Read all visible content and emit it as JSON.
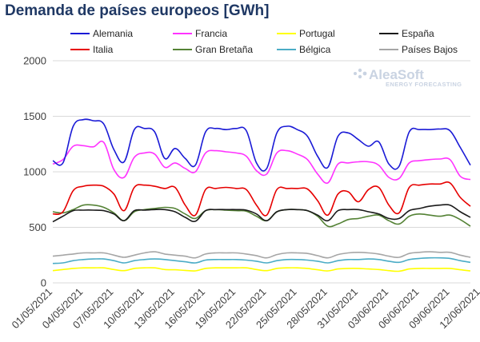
{
  "chart_data": {
    "type": "line",
    "title": "Demanda de países europeos [GWh]",
    "xlabel": "",
    "ylabel": "",
    "ylim": [
      0,
      2000
    ],
    "yticks": [
      0,
      500,
      1000,
      1500,
      2000
    ],
    "grid": true,
    "legend_position": "top",
    "x_start": "01/05/2021",
    "x_end": "13/06/2021",
    "xtick_labels": [
      "01/05/2021",
      "04/05/2021",
      "07/05/2021",
      "10/05/2021",
      "13/05/2021",
      "16/05/2021",
      "19/05/2021",
      "22/05/2021",
      "25/05/2021",
      "28/05/2021",
      "31/05/2021",
      "03/06/2021",
      "06/06/2021",
      "09/06/2021",
      "12/06/2021"
    ],
    "series": [
      {
        "name": "Alemania",
        "color": "#1a1ad6",
        "values": [
          1100,
          1080,
          1410,
          1470,
          1460,
          1430,
          1200,
          1090,
          1380,
          1390,
          1360,
          1120,
          1210,
          1120,
          1060,
          1360,
          1390,
          1380,
          1390,
          1370,
          1080,
          1030,
          1350,
          1410,
          1380,
          1320,
          1140,
          1040,
          1320,
          1350,
          1290,
          1230,
          1270,
          1070,
          1050,
          1360,
          1380,
          1380,
          1385,
          1370,
          1220,
          1060
        ]
      },
      {
        "name": "Francia",
        "color": "#ff33ff",
        "values": [
          1070,
          1110,
          1230,
          1235,
          1225,
          1265,
          1020,
          950,
          1130,
          1170,
          1160,
          1040,
          1080,
          1030,
          1000,
          1170,
          1190,
          1180,
          1170,
          1140,
          1010,
          980,
          1170,
          1190,
          1160,
          1110,
          980,
          900,
          1070,
          1080,
          1090,
          1090,
          1060,
          950,
          940,
          1080,
          1100,
          1110,
          1115,
          1110,
          960,
          930
        ]
      },
      {
        "name": "Portugal",
        "color": "#ffff00",
        "values": [
          110,
          120,
          130,
          135,
          135,
          135,
          120,
          110,
          130,
          135,
          135,
          120,
          118,
          112,
          108,
          130,
          135,
          135,
          135,
          135,
          120,
          110,
          130,
          135,
          135,
          130,
          118,
          108,
          125,
          130,
          130,
          125,
          120,
          110,
          105,
          125,
          130,
          130,
          130,
          130,
          118,
          108
        ]
      },
      {
        "name": "España",
        "color": "#1a1a1a",
        "values": [
          550,
          600,
          650,
          655,
          655,
          650,
          620,
          560,
          650,
          655,
          660,
          660,
          640,
          590,
          555,
          650,
          660,
          660,
          660,
          655,
          620,
          560,
          640,
          660,
          660,
          650,
          610,
          560,
          650,
          660,
          660,
          640,
          620,
          580,
          580,
          650,
          670,
          690,
          700,
          700,
          640,
          590
        ]
      },
      {
        "name": "Italia",
        "color": "#e60000",
        "values": [
          620,
          640,
          830,
          870,
          880,
          870,
          800,
          650,
          860,
          880,
          870,
          850,
          860,
          700,
          610,
          840,
          850,
          860,
          850,
          840,
          700,
          610,
          840,
          850,
          850,
          845,
          740,
          610,
          800,
          820,
          730,
          840,
          860,
          700,
          630,
          860,
          880,
          890,
          890,
          900,
          770,
          690
        ]
      },
      {
        "name": "Gran Bretaña",
        "color": "#548235",
        "values": [
          640,
          630,
          660,
          700,
          700,
          680,
          630,
          560,
          640,
          660,
          670,
          680,
          670,
          620,
          580,
          650,
          660,
          655,
          650,
          645,
          600,
          560,
          640,
          660,
          660,
          650,
          600,
          510,
          530,
          570,
          580,
          600,
          610,
          560,
          530,
          600,
          620,
          610,
          600,
          610,
          570,
          510
        ]
      },
      {
        "name": "Bélgica",
        "color": "#4bacc6",
        "values": [
          175,
          180,
          200,
          210,
          215,
          215,
          200,
          180,
          200,
          210,
          215,
          210,
          200,
          190,
          180,
          205,
          210,
          210,
          210,
          205,
          195,
          180,
          200,
          210,
          210,
          205,
          195,
          180,
          200,
          210,
          210,
          215,
          210,
          195,
          185,
          210,
          220,
          225,
          225,
          220,
          200,
          185
        ]
      },
      {
        "name": "Países Bajos",
        "color": "#a6a6a6",
        "values": [
          240,
          250,
          260,
          270,
          270,
          270,
          250,
          230,
          250,
          270,
          280,
          260,
          250,
          240,
          225,
          260,
          270,
          270,
          270,
          260,
          245,
          225,
          255,
          270,
          270,
          265,
          245,
          225,
          255,
          270,
          275,
          270,
          260,
          240,
          230,
          265,
          275,
          280,
          275,
          275,
          250,
          230
        ]
      }
    ]
  },
  "logo": {
    "main": "AleaSoft",
    "sub": "ENERGY FORECASTING"
  }
}
